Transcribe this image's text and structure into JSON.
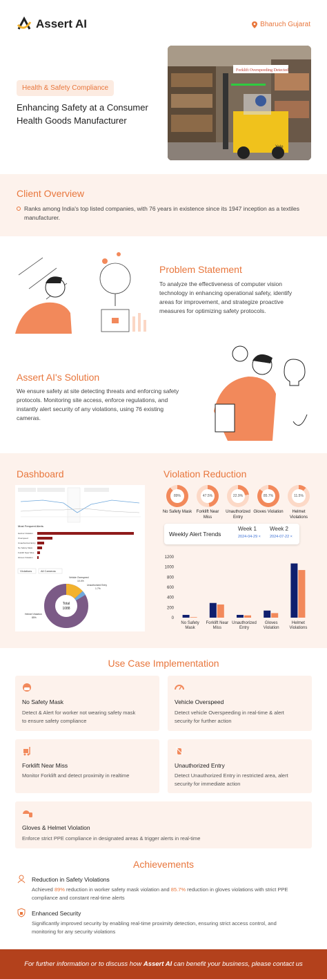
{
  "header": {
    "brand": "Assert AI",
    "location": "Bharuch Gujarat",
    "tag": "Health & Safety Compliance",
    "title": "Enhancing Safety at a Consumer Health Goods Manufacturer",
    "hero_alert": "Forklift Overspeeding Detected",
    "hero_sub": "",
    "hero_badge": "Yale"
  },
  "client": {
    "heading": "Client Overview",
    "bullet": "Ranks among India's top listed companies, with 76 years in existence since its 1947 inception as a textiles manufacturer."
  },
  "problem": {
    "heading": "Problem Statement",
    "text": "To analyze the effectiveness of computer vision technology in enhancing operational safety, identify areas for improvement, and strategize proactive measures for optimizing safety protocols."
  },
  "solution": {
    "heading": "Assert AI's Solution",
    "text": "We ensure safety at site detecting threats and enforcing safety protocols. Monitoring site access, enforce regulations, and instantly alert security of any violations, using 76 existing cameras."
  },
  "dashboard": {
    "heading": "Dashboard",
    "alerts_title": "Most Frequent Alerts",
    "tab1": "Violations",
    "tab2": "All Cameras",
    "total_label": "Total",
    "total_value": "1088",
    "pie_labels": [
      "Vehicle Overspeed",
      "Unauthorized Entry",
      "Helmet Violation"
    ],
    "pie_values": [
      "10.4%",
      "1.7%",
      "85%"
    ],
    "bar_labels": [
      "Helmet Violation",
      "Overspeed",
      "Unauthorized Entry",
      "No Safety Mask",
      "Forklift Near Miss",
      "Gloves Violation"
    ]
  },
  "violation": {
    "heading": "Violation Reduction",
    "donuts": [
      {
        "pct": "89%",
        "label": "No Safety Mask"
      },
      {
        "pct": "47.5%",
        "label": "Forklift Near Miss"
      },
      {
        "pct": "22.9%",
        "label": "Unauthorized Entry"
      },
      {
        "pct": "85.7%",
        "label": "Gloves Violation"
      },
      {
        "pct": "11.5%",
        "label": "Helmet Violations"
      }
    ],
    "trend_title": "Weekly Alert Trends",
    "week1": "Week 1",
    "week1_date": "2024-04-29 ×",
    "week2": "Week 2",
    "week2_date": "2024-07-22 ×"
  },
  "chart_data": {
    "type": "bar",
    "categories": [
      "No Safety Mask",
      "Forklift Near Miss",
      "Unauthorized Entry",
      "Gloves Violation",
      "Helmet Violations"
    ],
    "series": [
      {
        "name": "Week 1",
        "values": [
          55,
          290,
          55,
          140,
          1070
        ]
      },
      {
        "name": "Week 2",
        "values": [
          10,
          260,
          45,
          90,
          940
        ]
      }
    ],
    "ylim": [
      0,
      1200
    ],
    "yticks": [
      0,
      200,
      400,
      600,
      800,
      1000,
      1200
    ],
    "colors": [
      "#0f1f6e",
      "#f2895b"
    ]
  },
  "usecases": {
    "heading": "Use Case Implementation",
    "items": [
      {
        "title": "No Safety Mask",
        "desc": "Detect & Alert for worker not wearing safety mask to ensure safety compliance"
      },
      {
        "title": "Vehicle Overspeed",
        "desc": "Detect vehicle Overspeeding in real-time & alert security for further action"
      },
      {
        "title": "Forklift Near Miss",
        "desc": "Monitor Forklift and detect proximity in realtime"
      },
      {
        "title": "Unauthorized Entry",
        "desc": "Detect Unauthorized Entry in restricted area, alert security for immediate action"
      },
      {
        "title": "Gloves & Helmet Violation",
        "desc": "Enforce strict PPE compliance in designated  areas & trigger alerts in real-time"
      }
    ]
  },
  "achievements": {
    "heading": "Achievements",
    "a1_title": "Reduction in Safety Violations",
    "a1_pre": "Achieved ",
    "a1_v1": "89%",
    "a1_mid": " reduction in worker safety mask violation and ",
    "a1_v2": "85.7%",
    "a1_post": " reduction in gloves violations with strict PPE compliance and constant real-time alerts",
    "a2_title": "Enhanced Security",
    "a2_text": "Significantly improved security by enabling real-time proximity detection, ensuring strict access control, and monitoring for any security violations"
  },
  "footer": {
    "pre": "For further information or to discuss how ",
    "brand": "Assert AI",
    "post": " can benefit your business, please contact us"
  }
}
